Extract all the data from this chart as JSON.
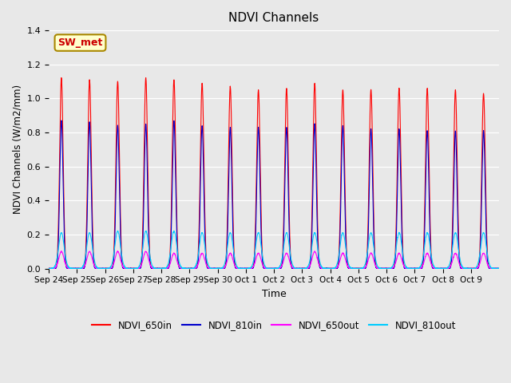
{
  "title": "NDVI Channels",
  "xlabel": "Time",
  "ylabel": "NDVI Channels (W/m2/mm)",
  "ylim": [
    0,
    1.4
  ],
  "background_color": "#e8e8e8",
  "plot_bg_color": "#e8e8e8",
  "legend_entries": [
    "NDVI_650in",
    "NDVI_810in",
    "NDVI_650out",
    "NDVI_810out"
  ],
  "legend_colors": [
    "#ff0000",
    "#0000cc",
    "#ff00ff",
    "#00ccff"
  ],
  "annotation_text": "SW_met",
  "annotation_color": "#cc0000",
  "annotation_bg": "#ffffcc",
  "annotation_border": "#aa8800",
  "num_cycles": 16,
  "peak_650in": [
    1.12,
    1.11,
    1.1,
    1.12,
    1.11,
    1.09,
    1.07,
    1.05,
    1.06,
    1.09,
    1.05,
    1.05,
    1.06,
    1.06,
    1.05,
    1.03
  ],
  "peak_810in": [
    0.87,
    0.86,
    0.84,
    0.85,
    0.87,
    0.84,
    0.83,
    0.83,
    0.83,
    0.85,
    0.84,
    0.82,
    0.82,
    0.81,
    0.81,
    0.81
  ],
  "peak_650out": [
    0.1,
    0.1,
    0.1,
    0.1,
    0.09,
    0.09,
    0.09,
    0.09,
    0.09,
    0.1,
    0.09,
    0.09,
    0.09,
    0.09,
    0.09,
    0.09
  ],
  "peak_810out": [
    0.21,
    0.21,
    0.22,
    0.22,
    0.22,
    0.21,
    0.21,
    0.21,
    0.21,
    0.21,
    0.21,
    0.21,
    0.21,
    0.21,
    0.21,
    0.21
  ],
  "x_tick_labels": [
    "Sep 24",
    "Sep 25",
    "Sep 26",
    "Sep 27",
    "Sep 28",
    "Sep 29",
    "Sep 30",
    "Oct 1",
    "Oct 2",
    "Oct 3",
    "Oct 4",
    "Oct 5",
    "Oct 6",
    "Oct 7",
    "Oct 8",
    "Oct 9"
  ]
}
